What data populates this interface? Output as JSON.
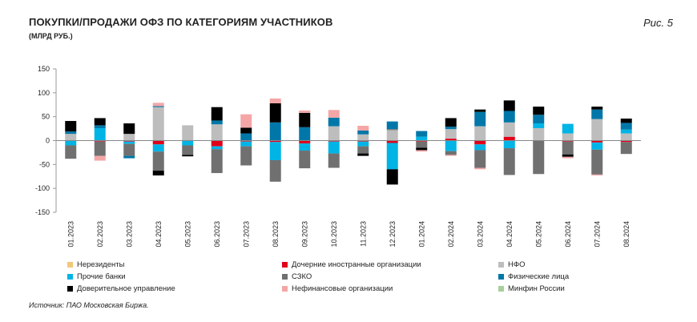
{
  "header": {
    "title": "ПОКУПКИ/ПРОДАЖИ ОФЗ ПО КАТЕГОРИЯМ УЧАСТНИКОВ",
    "subtitle": "(МЛРД РУБ.)",
    "figure_label": "Рис. 5"
  },
  "footer": {
    "source": "Источник: ПАО Московская Биржа."
  },
  "colors": {
    "nonresidents": "#f3c77a",
    "foreign_subsidiaries": "#e2001a",
    "nfo": "#bdbdbd",
    "other_banks": "#00b4e6",
    "szko": "#707070",
    "individuals": "#0077a8",
    "trust_management": "#000000",
    "nonfinancial": "#f4a6a6",
    "minfin": "#a9cf9a"
  },
  "chart_data": {
    "type": "bar",
    "stacked": true,
    "title": "ПОКУПКИ/ПРОДАЖИ ОФЗ ПО КАТЕГОРИЯМ УЧАСТНИКОВ",
    "ylabel": "МЛРД РУБ.",
    "ylim": [
      -150,
      150
    ],
    "yticks": [
      150,
      100,
      50,
      0,
      -50,
      -100,
      -150
    ],
    "categories": [
      "01.2023",
      "02.2023",
      "03.2023",
      "04.2023",
      "05.2023",
      "06.2023",
      "07.2023",
      "08.2023",
      "09.2023",
      "10.2023",
      "11.2023",
      "12.2023",
      "01.2024",
      "02.2024",
      "03.2024",
      "04.2024",
      "05.2024",
      "06.2024",
      "07.2024",
      "08.2024"
    ],
    "series": [
      {
        "key": "nonresidents",
        "name": "Нерезиденты",
        "values": [
          0,
          0,
          0,
          0,
          0,
          0,
          0,
          0,
          0,
          0,
          0,
          0,
          0,
          0,
          0,
          0,
          0,
          0,
          0,
          0
        ]
      },
      {
        "key": "foreign_subsidiaries",
        "name": "Дочерние иностранные организации",
        "values": [
          0,
          -2,
          -2,
          -8,
          0,
          -12,
          -2,
          -3,
          -6,
          -2,
          -2,
          -5,
          -2,
          4,
          -8,
          8,
          0,
          -2,
          -4,
          -3
        ]
      },
      {
        "key": "nfo",
        "name": "НФО",
        "values": [
          14,
          0,
          14,
          70,
          32,
          34,
          0,
          0,
          0,
          30,
          13,
          22,
          0,
          20,
          30,
          30,
          26,
          15,
          45,
          15
        ]
      },
      {
        "key": "other_banks",
        "name": "Прочие банки",
        "values": [
          -10,
          26,
          -5,
          -15,
          -10,
          -6,
          -10,
          -38,
          -15,
          -25,
          -10,
          -55,
          8,
          -22,
          -12,
          -16,
          10,
          20,
          -15,
          8
        ]
      },
      {
        "key": "szko",
        "name": "СЗКО",
        "values": [
          -28,
          -30,
          -25,
          -40,
          -20,
          -50,
          -40,
          -45,
          -37,
          -30,
          -15,
          2,
          -13,
          -8,
          -37,
          -56,
          -70,
          -27,
          -52,
          -25
        ]
      },
      {
        "key": "individuals",
        "name": "Физические лица",
        "values": [
          5,
          6,
          -5,
          2,
          0,
          8,
          15,
          38,
          28,
          18,
          8,
          16,
          12,
          5,
          30,
          24,
          18,
          0,
          20,
          14
        ]
      },
      {
        "key": "trust_management",
        "name": "Доверительное управление",
        "values": [
          22,
          15,
          22,
          -10,
          -3,
          28,
          12,
          40,
          30,
          0,
          -5,
          -32,
          -5,
          18,
          5,
          22,
          17,
          -5,
          6,
          9
        ]
      },
      {
        "key": "nonfinancial",
        "name": "Нефинансовые организации",
        "values": [
          0,
          -10,
          0,
          7,
          0,
          0,
          28,
          10,
          5,
          16,
          10,
          0,
          -3,
          -2,
          -3,
          0,
          0,
          -3,
          -2,
          0
        ]
      },
      {
        "key": "minfin",
        "name": "Минфин России",
        "values": [
          0,
          0,
          0,
          0,
          0,
          0,
          0,
          0,
          0,
          0,
          0,
          0,
          0,
          0,
          0,
          0,
          0,
          0,
          0,
          0
        ]
      }
    ],
    "legend_position": "bottom"
  }
}
